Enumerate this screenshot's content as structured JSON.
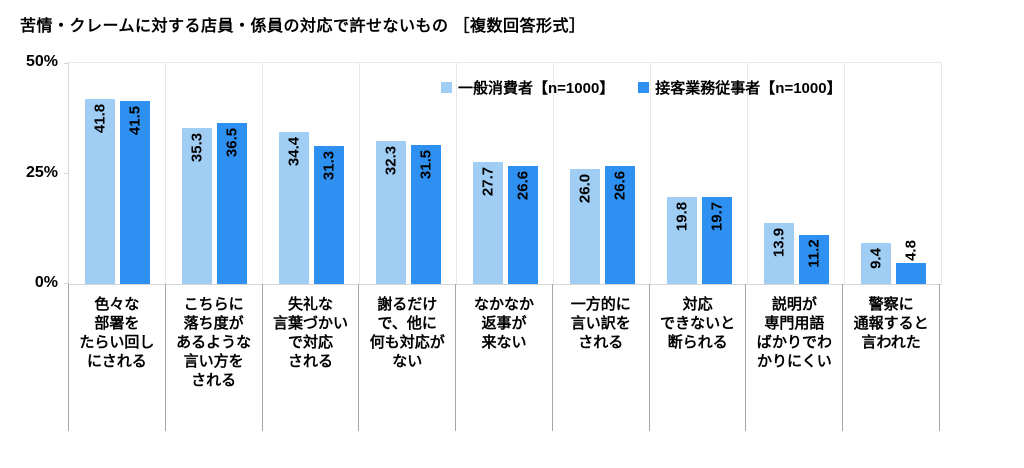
{
  "title": "苦情・クレームに対する店員・係員の対応で許せないもの ［複数回答形式］",
  "y_axis": {
    "ticks": [
      "50%",
      "25%",
      "0%"
    ]
  },
  "chart_data": {
    "type": "bar",
    "title": "苦情・クレームに対する店員・係員の対応で許せないもの ［複数回答形式］",
    "ylim": [
      0,
      50
    ],
    "grid": "vertical-category-separators",
    "legend_position": "top-inside",
    "value_label_style": "rotated-90-ccw-inside-bar-top",
    "categories": [
      [
        "色々な",
        "部署を",
        "たらい回し",
        "にされる"
      ],
      [
        "こちらに",
        "落ち度が",
        "あるような",
        "言い方を",
        "される"
      ],
      [
        "失礼な",
        "言葉づかい",
        "で対応",
        "される"
      ],
      [
        "謝るだけ",
        "で、他に",
        "何も対応が",
        "ない"
      ],
      [
        "なかなか",
        "返事が",
        "来ない"
      ],
      [
        "一方的に",
        "言い訳を",
        "される"
      ],
      [
        "対応",
        "できないと",
        "断られる"
      ],
      [
        "説明が",
        "専門用語",
        "ばかりでわ",
        "かりにくい"
      ],
      [
        "警察に",
        "通報すると",
        "言われた"
      ]
    ],
    "series": [
      {
        "name": "一般消費者【n=1000】",
        "color": "#9FCDF4",
        "values": [
          41.8,
          35.3,
          34.4,
          32.3,
          27.7,
          26.0,
          19.8,
          13.9,
          9.4
        ]
      },
      {
        "name": "接客業務従事者【n=1000】",
        "color": "#2E90F0",
        "values": [
          41.5,
          36.5,
          31.3,
          31.5,
          26.6,
          26.6,
          19.7,
          11.2,
          4.8
        ]
      }
    ]
  }
}
